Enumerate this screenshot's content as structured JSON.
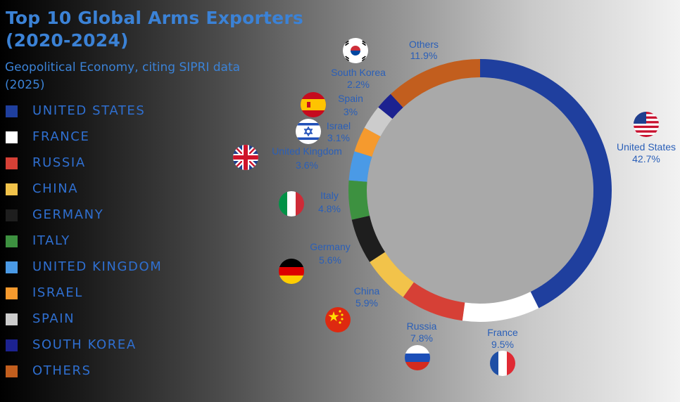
{
  "title_line1": "Top 10 Global Arms Exporters",
  "title_line2": "(2020-2024)",
  "subtitle_line1": "Geopolitical Economy, citing SIPRI data",
  "subtitle_line2": "(2025)",
  "legend": [
    {
      "label": "UNITED STATES",
      "color": "#1f3f9e"
    },
    {
      "label": "FRANCE",
      "color": "#ffffff"
    },
    {
      "label": "RUSSIA",
      "color": "#d64036"
    },
    {
      "label": "CHINA",
      "color": "#f2c34a"
    },
    {
      "label": "GERMANY",
      "color": "#1e1e1e"
    },
    {
      "label": "ITALY",
      "color": "#3d9140"
    },
    {
      "label": "UNITED KINGDOM",
      "color": "#4a9ae6"
    },
    {
      "label": "ISRAEL",
      "color": "#f59a2e"
    },
    {
      "label": "SPAIN",
      "color": "#cccccc"
    },
    {
      "label": "SOUTH KOREA",
      "color": "#1c2290"
    },
    {
      "label": "OTHERS",
      "color": "#c25e1e"
    }
  ],
  "chart_data": {
    "type": "pie",
    "variant": "donut",
    "start_angle_deg": 0,
    "direction": "clockwise",
    "categories": [
      "United States",
      "France",
      "Russia",
      "China",
      "Germany",
      "Italy",
      "United Kingdom",
      "Israel",
      "Spain",
      "South Korea",
      "Others"
    ],
    "values": [
      42.7,
      9.5,
      7.8,
      5.9,
      5.6,
      4.8,
      3.6,
      3.1,
      3.0,
      2.2,
      11.9
    ],
    "value_labels": [
      "42.7%",
      "9.5%",
      "7.8%",
      "5.9%",
      "5.6%",
      "4.8%",
      "3.6%",
      "3.1%",
      "3%",
      "2.2%",
      "11.9%"
    ],
    "colors": [
      "#1f3f9e",
      "#ffffff",
      "#d64036",
      "#f2c34a",
      "#1e1e1e",
      "#3d9140",
      "#4a9ae6",
      "#f59a2e",
      "#cccccc",
      "#1c2290",
      "#c25e1e"
    ],
    "flag_icons": [
      "us-flag-icon",
      "france-flag-icon",
      "russia-flag-icon",
      "china-flag-icon",
      "germany-flag-icon",
      "italy-flag-icon",
      "uk-flag-icon",
      "israel-flag-icon",
      "spain-flag-icon",
      "south-korea-flag-icon",
      null
    ],
    "legend_position": "left"
  }
}
